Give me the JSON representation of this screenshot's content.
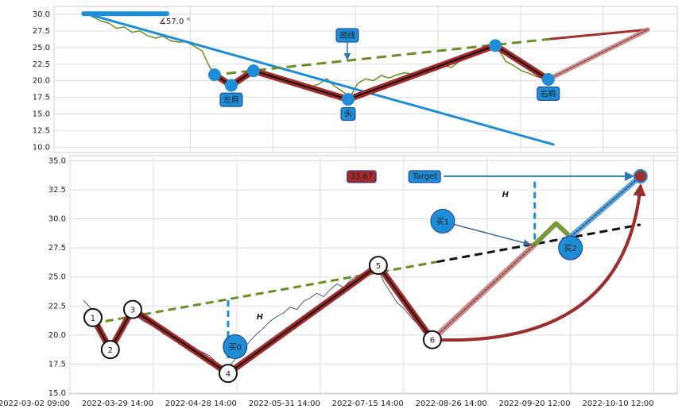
{
  "chart_data": [
    {
      "type": "line",
      "xlim": [
        0,
        160
      ],
      "xticks": [
        35,
        56.2,
        77.4,
        98.6,
        119.8,
        141
      ],
      "ylim": [
        9.2,
        31.2
      ],
      "yticks": [
        {
          "value": 10,
          "label": "10.0"
        },
        {
          "value": 12.5,
          "label": "12.5"
        },
        {
          "value": 15,
          "label": "15.0"
        },
        {
          "value": 17.5,
          "label": "17.5"
        },
        {
          "value": 20,
          "label": "20.0"
        },
        {
          "value": 22.5,
          "label": "22.5"
        },
        {
          "value": 25,
          "label": "25.0"
        },
        {
          "value": 27.5,
          "label": "27.5"
        },
        {
          "value": 30,
          "label": "30.0"
        }
      ],
      "grid": true,
      "color": "#6b8e23",
      "x": [
        8,
        10,
        12,
        14,
        16,
        18,
        20,
        22,
        24,
        26,
        28,
        30,
        32,
        34,
        36,
        38,
        40,
        42,
        44,
        46,
        48,
        50,
        52,
        54,
        56,
        58,
        60,
        62,
        64,
        66,
        68,
        70,
        72,
        74,
        76,
        78,
        80,
        82,
        84,
        86,
        88,
        90,
        92,
        94,
        96,
        98,
        100,
        102,
        104,
        106,
        108,
        110,
        112,
        114,
        116,
        118,
        120,
        122,
        124,
        126
      ],
      "values": [
        30.2,
        29.6,
        29.0,
        28.7,
        27.9,
        28.1,
        27.3,
        27.5,
        26.8,
        26.4,
        26.7,
        26.0,
        25.8,
        25.9,
        25.2,
        24.5,
        22.0,
        20.6,
        19.8,
        19.5,
        20.6,
        21.3,
        21.0,
        20.7,
        20.9,
        20.2,
        19.6,
        19.9,
        19.4,
        19.1,
        19.5,
        20.3,
        19.2,
        18.4,
        17.6,
        19.6,
        20.3,
        20.0,
        20.8,
        20.4,
        20.9,
        21.2,
        21.0,
        21.6,
        21.4,
        21.9,
        22.3,
        22.0,
        22.9,
        23.4,
        23.9,
        24.6,
        25.1,
        24.8,
        22.9,
        22.3,
        21.5,
        21.1,
        20.6,
        20.3
      ],
      "trendline": {
        "x": [
          7.6,
          128.2
        ],
        "y": [
          30.2,
          10.4
        ]
      },
      "angle_bar": {
        "x": [
          7.6,
          29
        ],
        "y": [
          30.1,
          30.1
        ]
      },
      "angle_label": "∡57.0 °",
      "neckline": {
        "x": [
          44.3,
          127.6
        ],
        "y": [
          21.1,
          26.3
        ]
      },
      "neck_ext": {
        "x": [
          127.6,
          152.4
        ],
        "y": [
          26.3,
          27.7
        ]
      },
      "projection": {
        "x": [
          126.9,
          152.4
        ],
        "y": [
          20.2,
          27.7
        ]
      },
      "pattern": {
        "x": [
          41.2,
          45.5,
          51.2,
          75.5,
          113.3,
          126.9
        ],
        "y": [
          20.9,
          19.3,
          21.5,
          17.2,
          25.3,
          20.2
        ]
      },
      "labels": [
        {
          "text": "左肩",
          "x": 45.5,
          "y": 17.07
        },
        {
          "text": "颈线",
          "x": 75.3,
          "y": 26.77,
          "arrow_y": 23.2
        },
        {
          "text": "头",
          "x": 75.5,
          "y": 15.0
        },
        {
          "text": "右肩",
          "x": 126.9,
          "y": 18.0
        }
      ]
    },
    {
      "type": "line",
      "xlim": [
        0,
        182
      ],
      "xticks": [
        {
          "value": 0,
          "label": "2022-03-02 09:00"
        },
        {
          "value": 25,
          "label": "2022-03-29 14:00"
        },
        {
          "value": 50,
          "label": "2022-04-28 14:00"
        },
        {
          "value": 75,
          "label": "2022-05-31 14:00"
        },
        {
          "value": 100,
          "label": "2022-07-15 14:00"
        },
        {
          "value": 125,
          "label": "2022-08-26 14:00"
        },
        {
          "value": 150,
          "label": "2022-09-20 12:00"
        },
        {
          "value": 175,
          "label": "2022-10-10 12:00"
        }
      ],
      "ylim": [
        15,
        35.3
      ],
      "yticks": [
        {
          "value": 15,
          "label": "15.0"
        },
        {
          "value": 17.5,
          "label": "17.5"
        },
        {
          "value": 20,
          "label": "20.0"
        },
        {
          "value": 22.5,
          "label": "22.5"
        },
        {
          "value": 25,
          "label": "25.0"
        },
        {
          "value": 27.5,
          "label": "27.5"
        },
        {
          "value": 30,
          "label": "30.0"
        },
        {
          "value": 32.5,
          "label": "32.5"
        },
        {
          "value": 35,
          "label": "35.0"
        }
      ],
      "grid": true,
      "color": "#4a5a7a",
      "x": [
        4,
        6,
        8,
        10,
        12,
        14,
        16,
        18,
        20,
        22,
        24,
        26,
        28,
        30,
        32,
        34,
        36,
        38,
        40,
        42,
        44,
        46,
        48,
        50,
        52,
        54,
        56,
        58,
        60,
        62,
        64,
        66,
        68,
        70,
        72,
        74,
        76,
        78,
        80,
        82,
        84,
        86,
        88,
        90,
        92,
        94,
        96,
        98,
        100,
        102,
        104,
        106,
        108
      ],
      "values": [
        23.0,
        22.4,
        21.6,
        20.2,
        19.0,
        19.8,
        21.3,
        22.0,
        21.6,
        21.2,
        20.9,
        20.6,
        20.1,
        19.9,
        19.4,
        19.6,
        19.0,
        18.7,
        18.5,
        18.2,
        17.6,
        17.0,
        17.4,
        18.1,
        18.8,
        19.5,
        20.1,
        20.6,
        21.2,
        21.6,
        21.9,
        22.4,
        22.2,
        22.9,
        23.2,
        23.6,
        23.3,
        23.9,
        24.4,
        24.1,
        24.7,
        25.1,
        25.0,
        25.6,
        25.9,
        24.6,
        23.7,
        22.8,
        22.3,
        21.6,
        21.0,
        20.4,
        19.8
      ],
      "pattern": {
        "x": [
          6.9,
          12.1,
          18.8,
          47.4,
          92.4,
          108.6
        ],
        "y": [
          21.5,
          18.75,
          22.2,
          16.7,
          26.0,
          19.6
        ],
        "labels": [
          "1",
          "2",
          "3",
          "4",
          "5",
          "6"
        ]
      },
      "neckline": {
        "x": [
          6.9,
          110
        ],
        "y": [
          21.0,
          26.3
        ]
      },
      "neck_ext": {
        "x": [
          110,
          171
        ],
        "y": [
          26.3,
          29.5
        ]
      },
      "proj_red": {
        "x": [
          108.6,
          139.3
        ],
        "y": [
          19.6,
          27.8
        ]
      },
      "proj_green": {
        "x": [
          139.3,
          145.7,
          150
        ],
        "y": [
          27.8,
          29.6,
          28.45
        ]
      },
      "proj_blue": {
        "x": [
          150,
          171
        ],
        "y": [
          28.45,
          33.67
        ]
      },
      "target": 33.67,
      "target_x": 171,
      "target_label": "Target",
      "target_box_x": 106.4,
      "value_box_x": 87.4,
      "buys": [
        {
          "text": "买0",
          "x": 49.5,
          "y": 19.0
        },
        {
          "text": "买1",
          "x": 111.7,
          "y": 29.8,
          "to": [
            139.3,
            27.8
          ]
        },
        {
          "text": "买2",
          "x": 150,
          "y": 27.5
        }
      ],
      "h_labels": [
        {
          "text": "H",
          "x": 56.9,
          "y": 21.55
        },
        {
          "text": "H",
          "x": 130.5,
          "y": 32.1
        }
      ],
      "heights": [
        {
          "x": 47.4,
          "y": [
            23.0,
            17.7
          ]
        },
        {
          "x": 139.3,
          "y": [
            33.2,
            27.9
          ]
        }
      ]
    }
  ]
}
